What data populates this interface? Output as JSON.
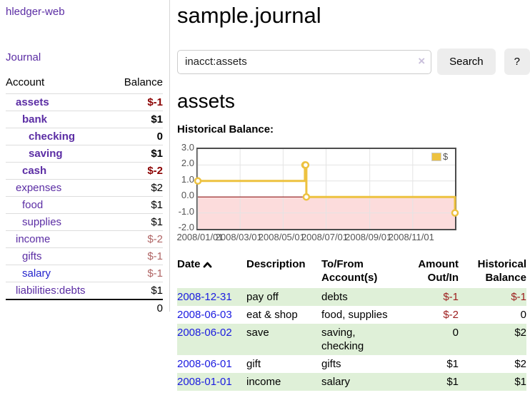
{
  "brand": {
    "label": "hledger-web"
  },
  "nav": {
    "journal": "Journal"
  },
  "sidebar": {
    "headers": {
      "account": "Account",
      "balance": "Balance"
    },
    "accounts": [
      {
        "name": "assets",
        "indent": 1,
        "style": "matched",
        "balance": "$-1",
        "balance_style": "neg-strong"
      },
      {
        "name": "bank",
        "indent": 2,
        "style": "matched",
        "balance": "$1",
        "balance_style": "pos-strong"
      },
      {
        "name": "checking",
        "indent": 3,
        "style": "matched",
        "balance": "0",
        "balance_style": "pos-strong"
      },
      {
        "name": "saving",
        "indent": 3,
        "style": "matched",
        "balance": "$1",
        "balance_style": "pos-strong"
      },
      {
        "name": "cash",
        "indent": 2,
        "style": "matched",
        "balance": "$-2",
        "balance_style": "neg-strong"
      },
      {
        "name": "expenses",
        "indent": 1,
        "style": "visited",
        "balance": "$2",
        "balance_style": "pos"
      },
      {
        "name": "food",
        "indent": 2,
        "style": "visited",
        "balance": "$1",
        "balance_style": "pos"
      },
      {
        "name": "supplies",
        "indent": 2,
        "style": "visited",
        "balance": "$1",
        "balance_style": "pos"
      },
      {
        "name": "income",
        "indent": 1,
        "style": "visited",
        "balance": "$-2",
        "balance_style": "neg"
      },
      {
        "name": "gifts",
        "indent": 2,
        "style": "visited",
        "balance": "$-1",
        "balance_style": "neg"
      },
      {
        "name": "salary",
        "indent": 2,
        "style": "link",
        "balance": "$-1",
        "balance_style": "neg"
      },
      {
        "name": "liabilities:debts",
        "indent": 1,
        "style": "visited",
        "balance": "$1",
        "balance_style": "pos"
      }
    ],
    "total": "0"
  },
  "header": {
    "title": "sample.journal"
  },
  "search": {
    "value": "inacct:assets",
    "clear_icon": "×",
    "search_button": "Search",
    "help_button": "?"
  },
  "account_page": {
    "heading": "assets",
    "chart_title": "Historical Balance:"
  },
  "chart_data": {
    "type": "line",
    "title": "Historical Balance:",
    "line_style": "steps",
    "legend": [
      {
        "label": "$",
        "color": "#edc240"
      }
    ],
    "legend_position": "top-right",
    "x_range": [
      "2008-01-01",
      "2008-12-31"
    ],
    "ylim": [
      -2.0,
      3.0
    ],
    "y_ticks": [
      3.0,
      2.0,
      1.0,
      0.0,
      -1.0,
      -2.0
    ],
    "x_ticks": [
      "2008/01/01",
      "2008/03/01",
      "2008/05/01",
      "2008/07/01",
      "2008/09/01",
      "2008/11/01"
    ],
    "series": [
      {
        "name": "$",
        "color": "#edc240",
        "points": [
          {
            "x": "2008-01-01",
            "y": 1
          },
          {
            "x": "2008-06-01",
            "y": 2
          },
          {
            "x": "2008-06-02",
            "y": 2
          },
          {
            "x": "2008-06-03",
            "y": 0
          },
          {
            "x": "2008-12-31",
            "y": -1
          }
        ]
      }
    ],
    "grid": true,
    "grid_color": "#e4e4e4",
    "zero_line_color": "#8f1a1a",
    "negative_region_color": "#fcdcdc"
  },
  "register": {
    "headers": {
      "date": "Date",
      "sort_icon": "chevron-up",
      "description": "Description",
      "accounts": "To/From Account(s)",
      "amount": "Amount Out/In",
      "balance": "Historical Balance"
    },
    "rows": [
      {
        "date": "2008-12-31",
        "description": "pay off",
        "accounts": "debts",
        "amount": "$-1",
        "amount_neg": true,
        "balance": "$-1",
        "balance_neg": true
      },
      {
        "date": "2008-06-03",
        "description": "eat & shop",
        "accounts": "food, supplies",
        "amount": "$-2",
        "amount_neg": true,
        "balance": "0",
        "balance_neg": false
      },
      {
        "date": "2008-06-02",
        "description": "save",
        "accounts": "saving, checking",
        "amount": "0",
        "amount_neg": false,
        "balance": "$2",
        "balance_neg": false
      },
      {
        "date": "2008-06-01",
        "description": "gift",
        "accounts": "gifts",
        "amount": "$1",
        "amount_neg": false,
        "balance": "$2",
        "balance_neg": false
      },
      {
        "date": "2008-01-01",
        "description": "income",
        "accounts": "salary",
        "amount": "$1",
        "amount_neg": false,
        "balance": "$1",
        "balance_neg": false
      }
    ]
  },
  "colors": {
    "link_purple": "#5b2da4",
    "link_blue": "#1a1ae0",
    "negative_strong": "#8b0000",
    "negative_soft": "#b06565",
    "row_stripe_green": "#dff0d8",
    "series_gold": "#edc240"
  }
}
